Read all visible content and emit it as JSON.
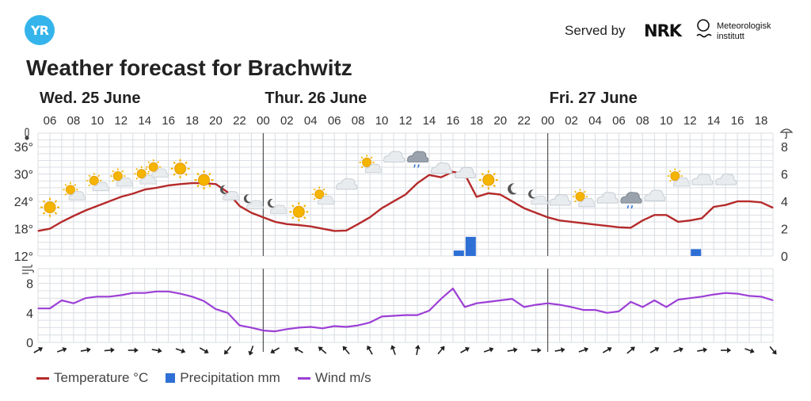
{
  "header": {
    "logo": "YR",
    "served_by": "Served by",
    "nrk": "NRK",
    "met_line1": "Meteorologisk",
    "met_line2": "institutt",
    "title": "Weather forecast for Brachwitz"
  },
  "legend": {
    "temperature": "Temperature °C",
    "precipitation": "Precipitation mm",
    "wind": "Wind m/s"
  },
  "colors": {
    "temperature": "#b52a2a",
    "precipitation": "#2e6fd6",
    "wind": "#9c3fd6",
    "grid": "#d9dde2",
    "day_divider": "#555555"
  },
  "chart_data": {
    "type": "line",
    "days": [
      {
        "label": "Wed. 25 June",
        "start_hour": 5
      },
      {
        "label": "Thur. 26 June",
        "start_hour": 24
      },
      {
        "label": "Fri. 27 June",
        "start_hour": 48
      }
    ],
    "x_start_hour": 5,
    "x_end_hour": 67,
    "time_tick_labels": [
      "06",
      "08",
      "10",
      "12",
      "14",
      "16",
      "18",
      "20",
      "22",
      "00",
      "02",
      "04",
      "06",
      "08",
      "10",
      "12",
      "14",
      "16",
      "18",
      "20",
      "22",
      "00",
      "02",
      "04",
      "06",
      "08",
      "10",
      "12",
      "14",
      "16",
      "18"
    ],
    "time_tick_hours": [
      6,
      8,
      10,
      12,
      14,
      16,
      18,
      20,
      22,
      24,
      26,
      28,
      30,
      32,
      34,
      36,
      38,
      40,
      42,
      44,
      46,
      48,
      50,
      52,
      54,
      56,
      58,
      60,
      62,
      64,
      66
    ],
    "temperature": {
      "name": "Temperature °C",
      "unit_icon": "thermometer-icon",
      "ylim": [
        12,
        39
      ],
      "ticks": [
        12,
        18,
        24,
        30,
        36
      ],
      "tick_labels": [
        "12°",
        "18°",
        "24°",
        "30°",
        "36°"
      ],
      "points": [
        [
          5,
          17.5
        ],
        [
          6,
          18
        ],
        [
          7,
          19.5
        ],
        [
          8,
          20.8
        ],
        [
          9,
          22
        ],
        [
          10,
          23
        ],
        [
          11,
          24
        ],
        [
          12,
          25
        ],
        [
          13,
          25.7
        ],
        [
          14,
          26.6
        ],
        [
          15,
          27
        ],
        [
          16,
          27.5
        ],
        [
          17,
          27.8
        ],
        [
          18,
          28
        ],
        [
          19,
          28
        ],
        [
          20,
          27.8
        ],
        [
          21,
          26
        ],
        [
          22,
          23
        ],
        [
          23,
          21.5
        ],
        [
          24,
          20.5
        ],
        [
          25,
          19.5
        ],
        [
          26,
          19
        ],
        [
          27,
          18.8
        ],
        [
          28,
          18.5
        ],
        [
          29,
          18
        ],
        [
          30,
          17.5
        ],
        [
          31,
          17.6
        ],
        [
          32,
          19
        ],
        [
          33,
          20.5
        ],
        [
          34,
          22.5
        ],
        [
          35,
          24
        ],
        [
          36,
          25.5
        ],
        [
          37,
          28
        ],
        [
          38,
          29.8
        ],
        [
          39,
          29.3
        ],
        [
          40,
          30.5
        ],
        [
          41,
          30
        ],
        [
          42,
          25
        ],
        [
          43,
          25.8
        ],
        [
          44,
          25.5
        ],
        [
          45,
          24
        ],
        [
          46,
          22.5
        ],
        [
          47,
          21.5
        ],
        [
          48,
          20.5
        ],
        [
          49,
          19.8
        ],
        [
          50,
          19.5
        ],
        [
          51,
          19.2
        ],
        [
          52,
          18.9
        ],
        [
          53,
          18.6
        ],
        [
          54,
          18.3
        ],
        [
          55,
          18.2
        ],
        [
          56,
          19.8
        ],
        [
          57,
          21
        ],
        [
          58,
          21
        ],
        [
          59,
          19.5
        ],
        [
          60,
          19.8
        ],
        [
          61,
          20.3
        ],
        [
          62,
          22.8
        ],
        [
          63,
          23.2
        ],
        [
          64,
          24
        ],
        [
          65,
          24
        ],
        [
          66,
          23.8
        ],
        [
          67,
          22.6
        ]
      ]
    },
    "precipitation": {
      "name": "Precipitation mm",
      "unit_icon": "umbrella-icon",
      "ylim": [
        0,
        9
      ],
      "ticks": [
        0,
        2,
        4,
        6,
        8
      ],
      "tick_labels": [
        "0",
        "2",
        "4",
        "6",
        "8"
      ],
      "bars": [
        [
          40,
          0.4
        ],
        [
          41,
          1.4
        ],
        [
          60,
          0.5
        ]
      ]
    },
    "wind": {
      "name": "Wind m/s",
      "unit_icon": "wind-icon",
      "ylim": [
        0,
        10
      ],
      "ticks": [
        0,
        4,
        8
      ],
      "tick_labels": [
        "0",
        "4",
        "8"
      ],
      "points": [
        [
          5,
          4.6
        ],
        [
          6,
          4.6
        ],
        [
          7,
          5.7
        ],
        [
          8,
          5.3
        ],
        [
          9,
          6
        ],
        [
          10,
          6.2
        ],
        [
          11,
          6.2
        ],
        [
          12,
          6.4
        ],
        [
          13,
          6.7
        ],
        [
          14,
          6.7
        ],
        [
          15,
          6.9
        ],
        [
          16,
          6.9
        ],
        [
          17,
          6.6
        ],
        [
          18,
          6.2
        ],
        [
          19,
          5.6
        ],
        [
          20,
          4.5
        ],
        [
          21,
          4
        ],
        [
          22,
          2.3
        ],
        [
          23,
          2
        ],
        [
          24,
          1.6
        ],
        [
          25,
          1.5
        ],
        [
          26,
          1.8
        ],
        [
          27,
          2
        ],
        [
          28,
          2.1
        ],
        [
          29,
          1.9
        ],
        [
          30,
          2.2
        ],
        [
          31,
          2.1
        ],
        [
          32,
          2.3
        ],
        [
          33,
          2.7
        ],
        [
          34,
          3.5
        ],
        [
          35,
          3.6
        ],
        [
          36,
          3.7
        ],
        [
          37,
          3.7
        ],
        [
          38,
          4.3
        ],
        [
          39,
          5.9
        ],
        [
          40,
          7.3
        ],
        [
          41,
          4.8
        ],
        [
          42,
          5.3
        ],
        [
          43,
          5.5
        ],
        [
          44,
          5.7
        ],
        [
          45,
          5.9
        ],
        [
          46,
          4.8
        ],
        [
          47,
          5.1
        ],
        [
          48,
          5.3
        ],
        [
          49,
          5.1
        ],
        [
          50,
          4.8
        ],
        [
          51,
          4.4
        ],
        [
          52,
          4.4
        ],
        [
          53,
          4
        ],
        [
          54,
          4.2
        ],
        [
          55,
          5.5
        ],
        [
          56,
          4.8
        ],
        [
          57,
          5.7
        ],
        [
          58,
          4.8
        ],
        [
          59,
          5.8
        ],
        [
          60,
          6
        ],
        [
          61,
          6.2
        ],
        [
          62,
          6.5
        ],
        [
          63,
          6.7
        ],
        [
          64,
          6.6
        ],
        [
          65,
          6.3
        ],
        [
          66,
          6.2
        ],
        [
          67,
          5.7
        ]
      ]
    },
    "weather_symbols": [
      {
        "hour": 6,
        "icon": "sun-icon",
        "temp": 22
      },
      {
        "hour": 8,
        "icon": "partly-cloudy-sun-icon",
        "temp": 25
      },
      {
        "hour": 10,
        "icon": "partly-cloudy-sun-icon",
        "temp": 27
      },
      {
        "hour": 12,
        "icon": "partly-cloudy-sun-icon",
        "temp": 28
      },
      {
        "hour": 14,
        "icon": "partly-cloudy-sun-icon",
        "temp": 28.5
      },
      {
        "hour": 15,
        "icon": "partly-cloudy-sun-icon",
        "temp": 30
      },
      {
        "hour": 17,
        "icon": "sun-icon",
        "temp": 30.5
      },
      {
        "hour": 19,
        "icon": "sun-icon",
        "temp": 28
      },
      {
        "hour": 21,
        "icon": "partly-cloudy-night-icon",
        "temp": 25
      },
      {
        "hour": 23,
        "icon": "partly-cloudy-night-icon",
        "temp": 23
      },
      {
        "hour": 25,
        "icon": "partly-cloudy-night-icon",
        "temp": 22
      },
      {
        "hour": 27,
        "icon": "sun-icon",
        "temp": 21
      },
      {
        "hour": 29,
        "icon": "partly-cloudy-sun-icon",
        "temp": 24
      },
      {
        "hour": 31,
        "icon": "cloud-icon",
        "temp": 27
      },
      {
        "hour": 33,
        "icon": "partly-cloudy-sun-icon",
        "temp": 31
      },
      {
        "hour": 35,
        "icon": "cloud-icon",
        "temp": 33
      },
      {
        "hour": 37,
        "icon": "rain-cloud-icon",
        "temp": 33
      },
      {
        "hour": 39,
        "icon": "cloud-icon",
        "temp": 30.5
      },
      {
        "hour": 41,
        "icon": "cloud-icon",
        "temp": 29.5
      },
      {
        "hour": 43,
        "icon": "sun-icon",
        "temp": 28
      },
      {
        "hour": 45,
        "icon": "moon-icon",
        "temp": 26
      },
      {
        "hour": 47,
        "icon": "partly-cloudy-night-icon",
        "temp": 24
      },
      {
        "hour": 49,
        "icon": "cloud-icon",
        "temp": 23.5
      },
      {
        "hour": 51,
        "icon": "partly-cloudy-sun-icon",
        "temp": 23.5
      },
      {
        "hour": 53,
        "icon": "cloud-icon",
        "temp": 24
      },
      {
        "hour": 55,
        "icon": "rain-cloud-icon",
        "temp": 24
      },
      {
        "hour": 57,
        "icon": "cloud-icon",
        "temp": 24.5
      },
      {
        "hour": 59,
        "icon": "partly-cloudy-sun-icon",
        "temp": 28
      },
      {
        "hour": 61,
        "icon": "cloud-icon",
        "temp": 28
      },
      {
        "hour": 63,
        "icon": "cloud-icon",
        "temp": 28
      }
    ],
    "wind_directions": [
      {
        "hour": 5,
        "deg": 60
      },
      {
        "hour": 7,
        "deg": 70
      },
      {
        "hour": 9,
        "deg": 80
      },
      {
        "hour": 11,
        "deg": 85
      },
      {
        "hour": 13,
        "deg": 90
      },
      {
        "hour": 15,
        "deg": 100
      },
      {
        "hour": 17,
        "deg": 110
      },
      {
        "hour": 19,
        "deg": 120
      },
      {
        "hour": 21,
        "deg": 220
      },
      {
        "hour": 23,
        "deg": 200
      },
      {
        "hour": 25,
        "deg": 240
      },
      {
        "hour": 27,
        "deg": 300
      },
      {
        "hour": 29,
        "deg": 310
      },
      {
        "hour": 31,
        "deg": 320
      },
      {
        "hour": 33,
        "deg": 330
      },
      {
        "hour": 35,
        "deg": 340
      },
      {
        "hour": 37,
        "deg": 10
      },
      {
        "hour": 39,
        "deg": 40
      },
      {
        "hour": 41,
        "deg": 60
      },
      {
        "hour": 43,
        "deg": 70
      },
      {
        "hour": 45,
        "deg": 80
      },
      {
        "hour": 47,
        "deg": 90
      },
      {
        "hour": 49,
        "deg": 80
      },
      {
        "hour": 51,
        "deg": 70
      },
      {
        "hour": 53,
        "deg": 60
      },
      {
        "hour": 55,
        "deg": 50
      },
      {
        "hour": 57,
        "deg": 60
      },
      {
        "hour": 59,
        "deg": 70
      },
      {
        "hour": 61,
        "deg": 80
      },
      {
        "hour": 63,
        "deg": 90
      },
      {
        "hour": 65,
        "deg": 110
      },
      {
        "hour": 67,
        "deg": 140
      }
    ]
  }
}
